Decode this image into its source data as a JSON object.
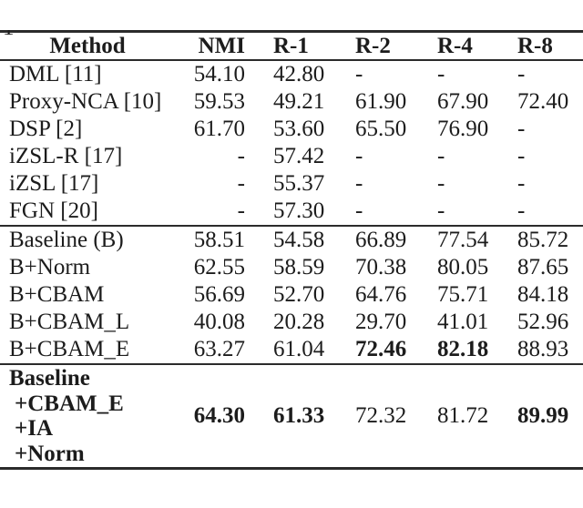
{
  "page": {
    "clipped_char": "1"
  },
  "table": {
    "columns": [
      {
        "key": "method",
        "label": "Method"
      },
      {
        "key": "nmi",
        "label": "NMI"
      },
      {
        "key": "r1",
        "label": "R-1"
      },
      {
        "key": "r2",
        "label": "R-2"
      },
      {
        "key": "r4",
        "label": "R-4"
      },
      {
        "key": "r8",
        "label": "R-8"
      }
    ],
    "sections": [
      {
        "rows": [
          {
            "cells": {
              "method": "DML [11]",
              "nmi": "54.10",
              "r1": "42.80",
              "r2": "-",
              "r4": "-",
              "r8": "-"
            },
            "bold": []
          },
          {
            "cells": {
              "method": "Proxy-NCA [10]",
              "nmi": "59.53",
              "r1": "49.21",
              "r2": "61.90",
              "r4": "67.90",
              "r8": "72.40"
            },
            "bold": []
          },
          {
            "cells": {
              "method": "DSP [2]",
              "nmi": "61.70",
              "r1": "53.60",
              "r2": "65.50",
              "r4": "76.90",
              "r8": "-"
            },
            "bold": []
          },
          {
            "cells": {
              "method": "iZSL-R [17]",
              "nmi": "-",
              "r1": "57.42",
              "r2": "-",
              "r4": "-",
              "r8": "-"
            },
            "bold": []
          },
          {
            "cells": {
              "method": "iZSL [17]",
              "nmi": "-",
              "r1": "55.37",
              "r2": "-",
              "r4": "-",
              "r8": "-"
            },
            "bold": []
          },
          {
            "cells": {
              "method": "FGN [20]",
              "nmi": "-",
              "r1": "57.30",
              "r2": "-",
              "r4": "-",
              "r8": "-"
            },
            "bold": []
          }
        ]
      },
      {
        "rows": [
          {
            "cells": {
              "method": "Baseline (B)",
              "nmi": "58.51",
              "r1": "54.58",
              "r2": "66.89",
              "r4": "77.54",
              "r8": "85.72"
            },
            "bold": []
          },
          {
            "cells": {
              "method": "B+Norm",
              "nmi": "62.55",
              "r1": "58.59",
              "r2": "70.38",
              "r4": "80.05",
              "r8": "87.65"
            },
            "bold": []
          },
          {
            "cells": {
              "method": "B+CBAM",
              "nmi": "56.69",
              "r1": "52.70",
              "r2": "64.76",
              "r4": "75.71",
              "r8": "84.18"
            },
            "bold": []
          },
          {
            "cells": {
              "method": "B+CBAM_L",
              "nmi": "40.08",
              "r1": "20.28",
              "r2": "29.70",
              "r4": "41.01",
              "r8": "52.96"
            },
            "bold": []
          },
          {
            "cells": {
              "method": "B+CBAM_E",
              "nmi": "63.27",
              "r1": "61.04",
              "r2": "72.46",
              "r4": "82.18",
              "r8": "88.93"
            },
            "bold": [
              "r2",
              "r4"
            ]
          }
        ]
      },
      {
        "rows": [
          {
            "method_lines": [
              "Baseline",
              "+CBAM_E",
              "+IA",
              "+Norm"
            ],
            "cells": {
              "method": "Baseline +CBAM_E +IA +Norm",
              "nmi": "64.30",
              "r1": "61.33",
              "r2": "72.32",
              "r4": "81.72",
              "r8": "89.99"
            },
            "bold": [
              "nmi",
              "r1",
              "r8"
            ]
          }
        ]
      }
    ]
  }
}
